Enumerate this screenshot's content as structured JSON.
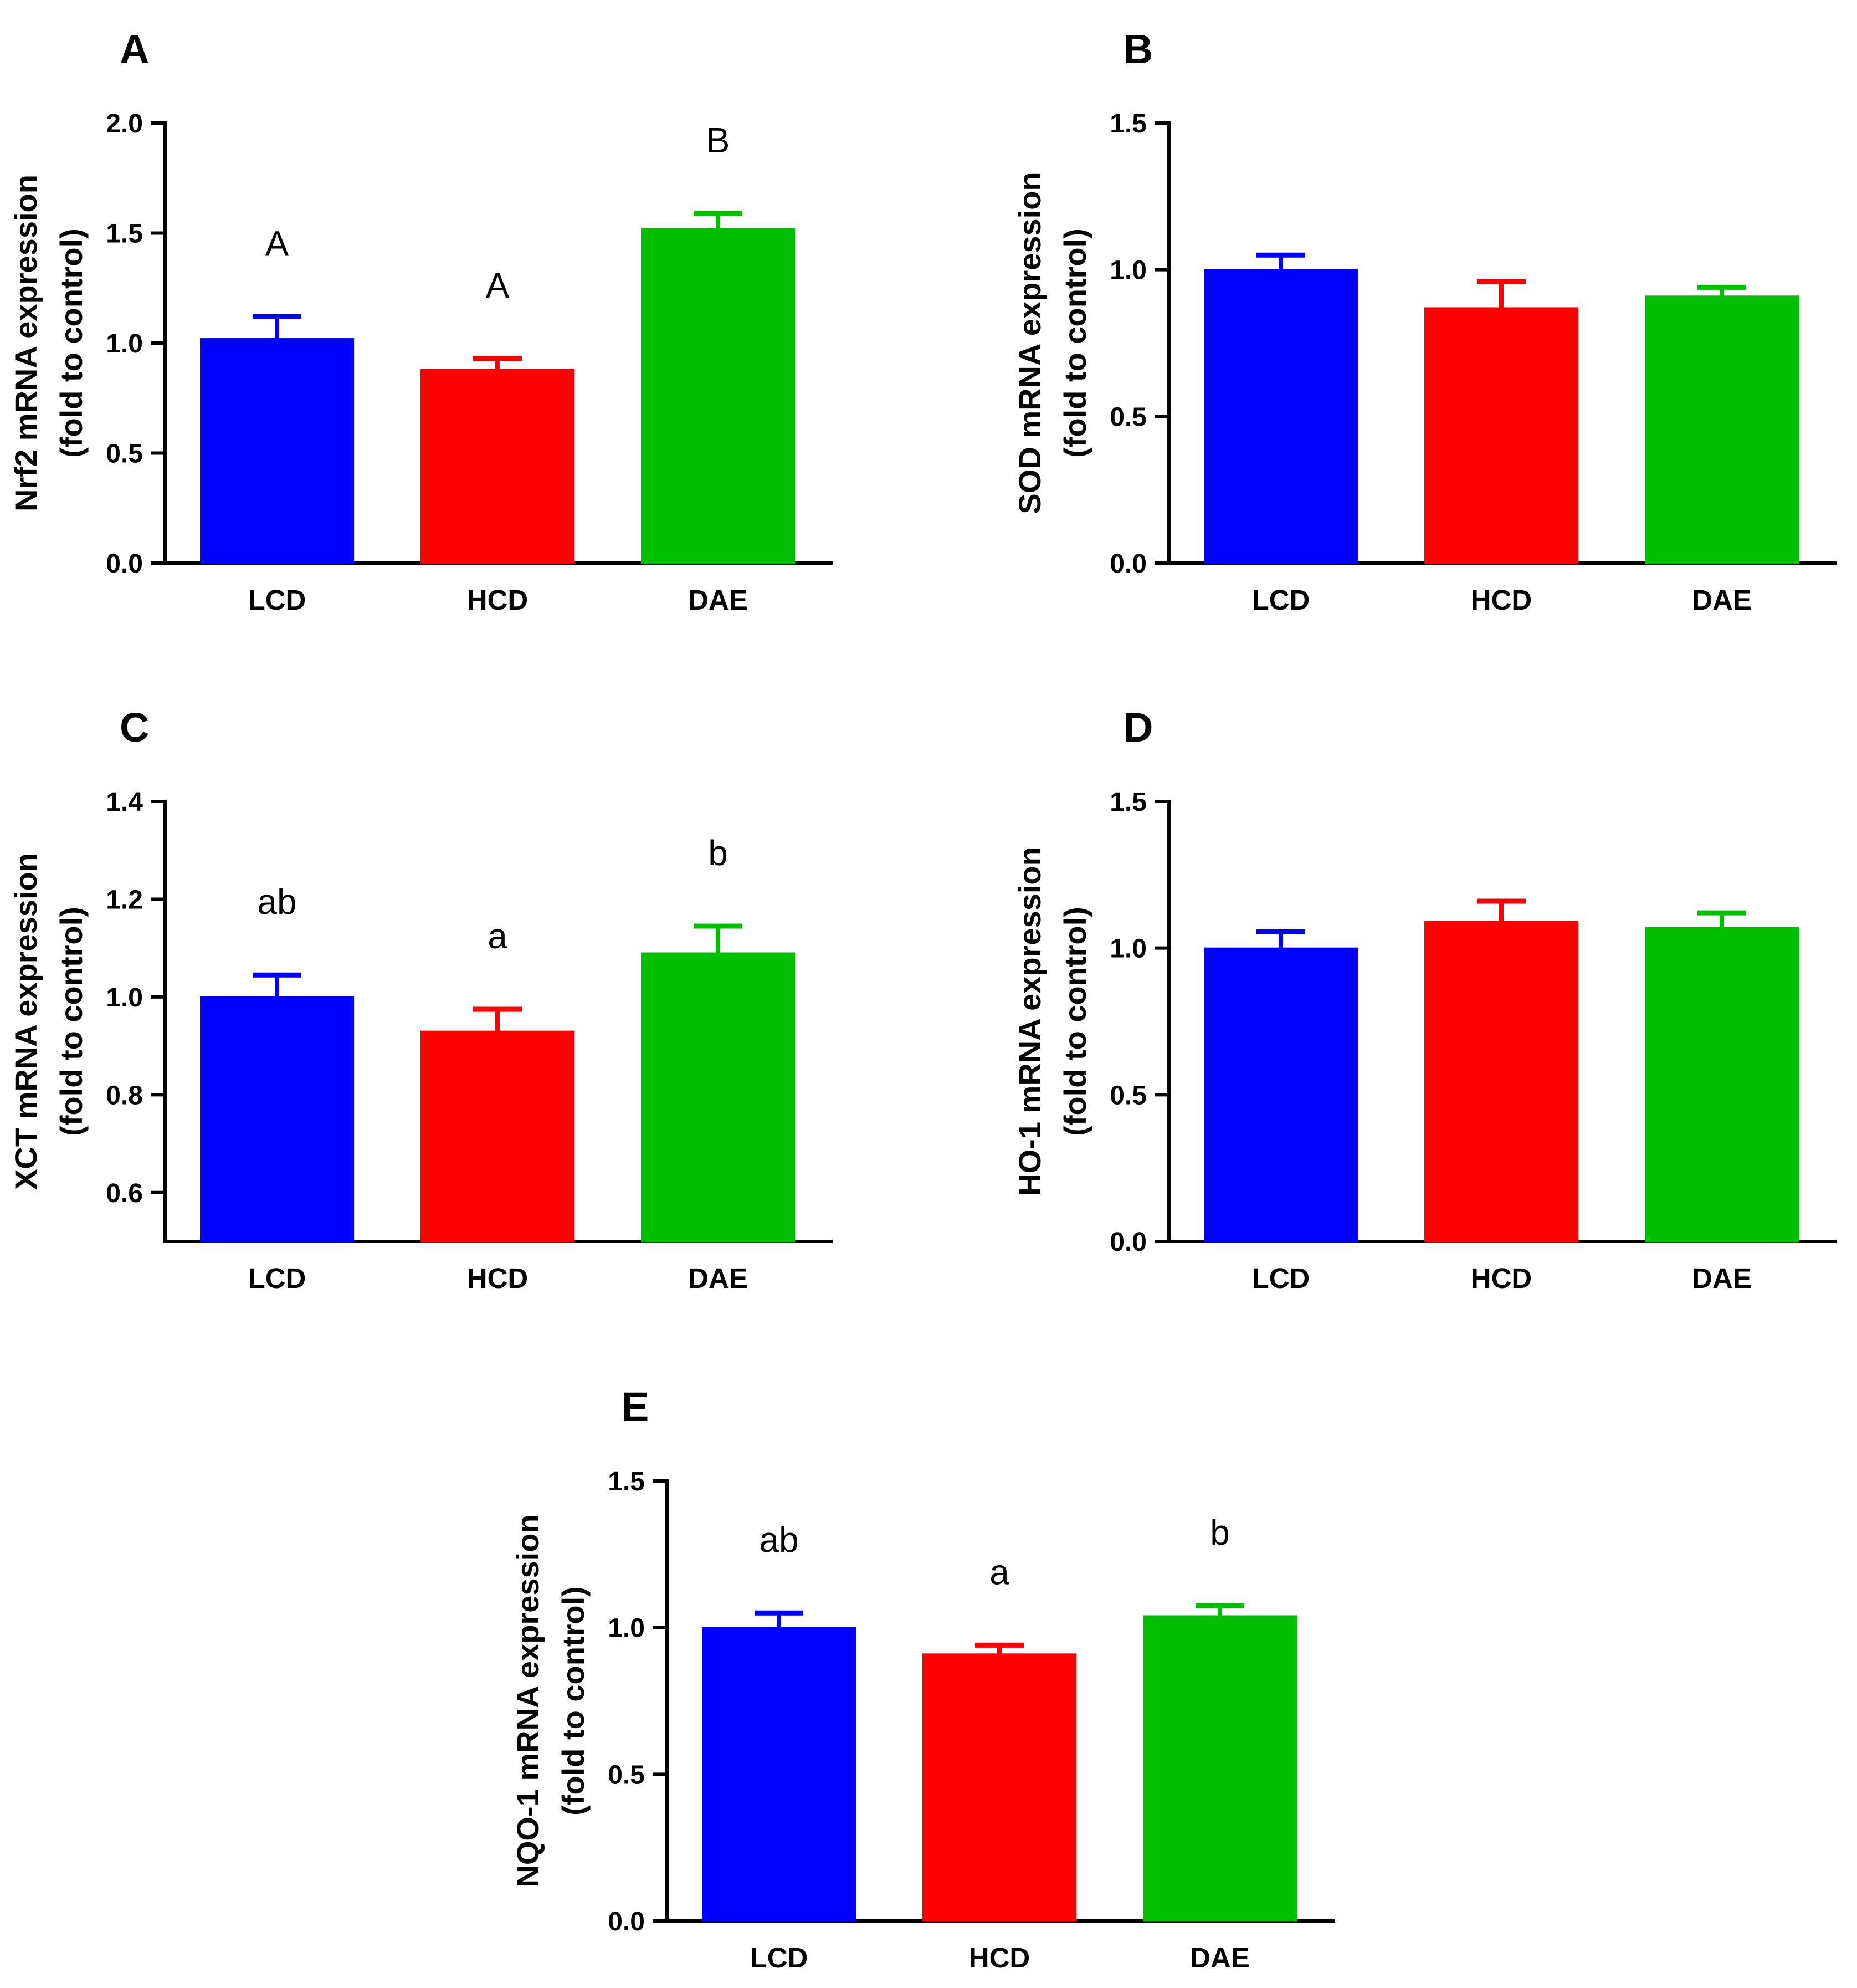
{
  "colors": {
    "LCD": "#0000ff",
    "HCD": "#ff0000",
    "DAE": "#00bf00",
    "axis": "#000000"
  },
  "chart_data": [
    {
      "type": "bar",
      "panel": "A",
      "ylabel": [
        "Nrf2 mRNA expression",
        "(fold to control)"
      ],
      "ylim": [
        0,
        2.0
      ],
      "yticks": [
        "0.0",
        "0.5",
        "1.0",
        "1.5",
        "2.0"
      ],
      "categories": [
        "LCD",
        "HCD",
        "DAE"
      ],
      "values": [
        1.02,
        0.88,
        1.52
      ],
      "errors": [
        0.1,
        0.05,
        0.07
      ],
      "letters": [
        "A",
        "A",
        "B"
      ]
    },
    {
      "type": "bar",
      "panel": "B",
      "ylabel": [
        "SOD mRNA expression",
        "(fold to control)"
      ],
      "ylim": [
        0,
        1.5
      ],
      "yticks": [
        "0.0",
        "0.5",
        "1.0",
        "1.5"
      ],
      "categories": [
        "LCD",
        "HCD",
        "DAE"
      ],
      "values": [
        1.0,
        0.87,
        0.91
      ],
      "errors": [
        0.05,
        0.09,
        0.03
      ],
      "letters": []
    },
    {
      "type": "bar",
      "panel": "C",
      "ylabel": [
        "XCT mRNA expression",
        "(fold to control)"
      ],
      "ylim": [
        0.5,
        1.4
      ],
      "yticks": [
        "0.6",
        "0.8",
        "1.0",
        "1.2",
        "1.4"
      ],
      "categories": [
        "LCD",
        "HCD",
        "DAE"
      ],
      "values": [
        1.0,
        0.93,
        1.09
      ],
      "errors": [
        0.045,
        0.045,
        0.055
      ],
      "letters": [
        "ab",
        "a",
        "b"
      ]
    },
    {
      "type": "bar",
      "panel": "D",
      "ylabel": [
        "HO-1 mRNA expression",
        "(fold to control)"
      ],
      "ylim": [
        0,
        1.5
      ],
      "yticks": [
        "0.0",
        "0.5",
        "1.0",
        "1.5"
      ],
      "categories": [
        "LCD",
        "HCD",
        "DAE"
      ],
      "values": [
        1.0,
        1.09,
        1.07
      ],
      "errors": [
        0.055,
        0.07,
        0.05
      ],
      "letters": []
    },
    {
      "type": "bar",
      "panel": "E",
      "ylabel": [
        "NQO-1 mRNA expression",
        "(fold to control)"
      ],
      "ylim": [
        0,
        1.5
      ],
      "yticks": [
        "0.0",
        "0.5",
        "1.0",
        "1.5"
      ],
      "categories": [
        "LCD",
        "HCD",
        "DAE"
      ],
      "values": [
        1.0,
        0.91,
        1.04
      ],
      "errors": [
        0.05,
        0.03,
        0.035
      ],
      "letters": [
        "ab",
        "a",
        "b"
      ]
    }
  ]
}
